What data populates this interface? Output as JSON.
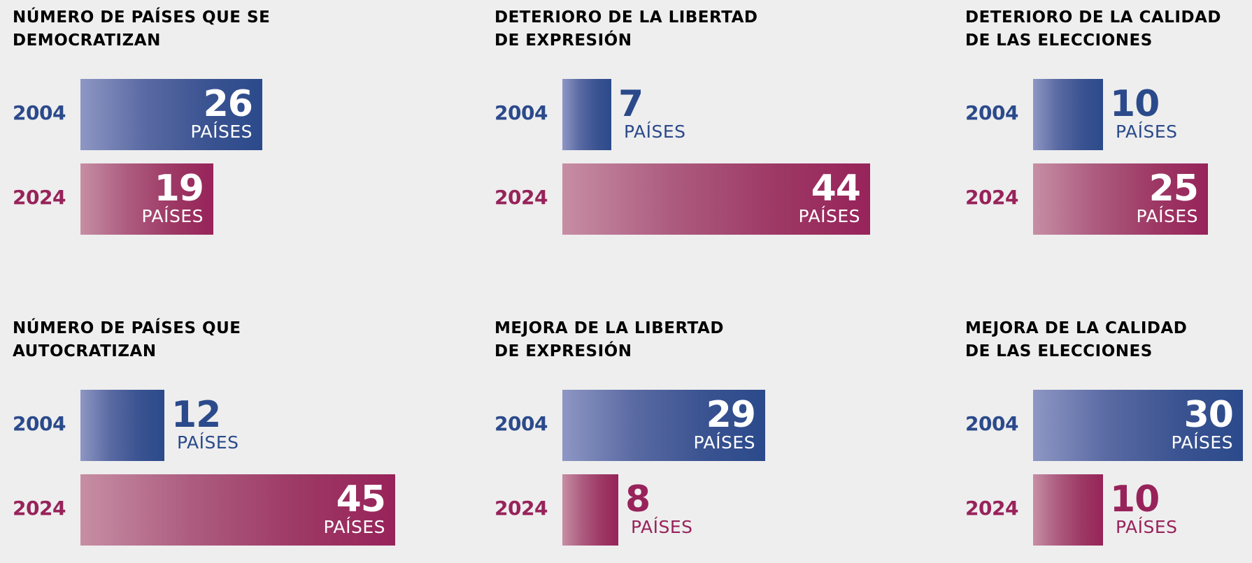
{
  "colors": {
    "y2004": "#2b4a8b",
    "y2024": "#97235a",
    "background": "#eeeeee"
  },
  "unit_label": "PAÍSES",
  "chart_data": [
    {
      "type": "bar",
      "title": "NÚMERO DE PAÍSES QUE SE DEMOCRATIZAN",
      "title_lines": [
        "NÚMERO DE PAÍSES QUE SE",
        "DEMOCRATIZAN"
      ],
      "categories": [
        "2004",
        "2024"
      ],
      "values": [
        26,
        19
      ],
      "unit": "PAÍSES"
    },
    {
      "type": "bar",
      "title": "DETERIORO DE LA LIBERTAD DE EXPRESIÓN",
      "title_lines": [
        "DETERIORO DE LA LIBERTAD",
        "DE EXPRESIÓN"
      ],
      "categories": [
        "2004",
        "2024"
      ],
      "values": [
        7,
        44
      ],
      "unit": "PAÍSES"
    },
    {
      "type": "bar",
      "title": "DETERIORO DE LA CALIDAD DE LAS ELECCIONES",
      "title_lines": [
        "DETERIORO DE LA CALIDAD",
        "DE LAS ELECCIONES"
      ],
      "categories": [
        "2004",
        "2024"
      ],
      "values": [
        10,
        25
      ],
      "unit": "PAÍSES"
    },
    {
      "type": "bar",
      "title": "NÚMERO DE PAÍSES QUE AUTOCRATIZAN",
      "title_lines": [
        "NÚMERO DE PAÍSES QUE",
        "AUTOCRATIZAN"
      ],
      "categories": [
        "2004",
        "2024"
      ],
      "values": [
        12,
        45
      ],
      "unit": "PAÍSES"
    },
    {
      "type": "bar",
      "title": "MEJORA DE LA LIBERTAD DE EXPRESIÓN",
      "title_lines": [
        "MEJORA DE LA LIBERTAD",
        "DE EXPRESIÓN"
      ],
      "categories": [
        "2004",
        "2024"
      ],
      "values": [
        29,
        8
      ],
      "unit": "PAÍSES"
    },
    {
      "type": "bar",
      "title": "MEJORA DE LA CALIDAD DE LAS ELECCIONES",
      "title_lines": [
        "MEJORA DE LA CALIDAD",
        "DE LAS ELECCIONES"
      ],
      "categories": [
        "2004",
        "2024"
      ],
      "values": [
        30,
        10
      ],
      "unit": "PAÍSES"
    }
  ]
}
